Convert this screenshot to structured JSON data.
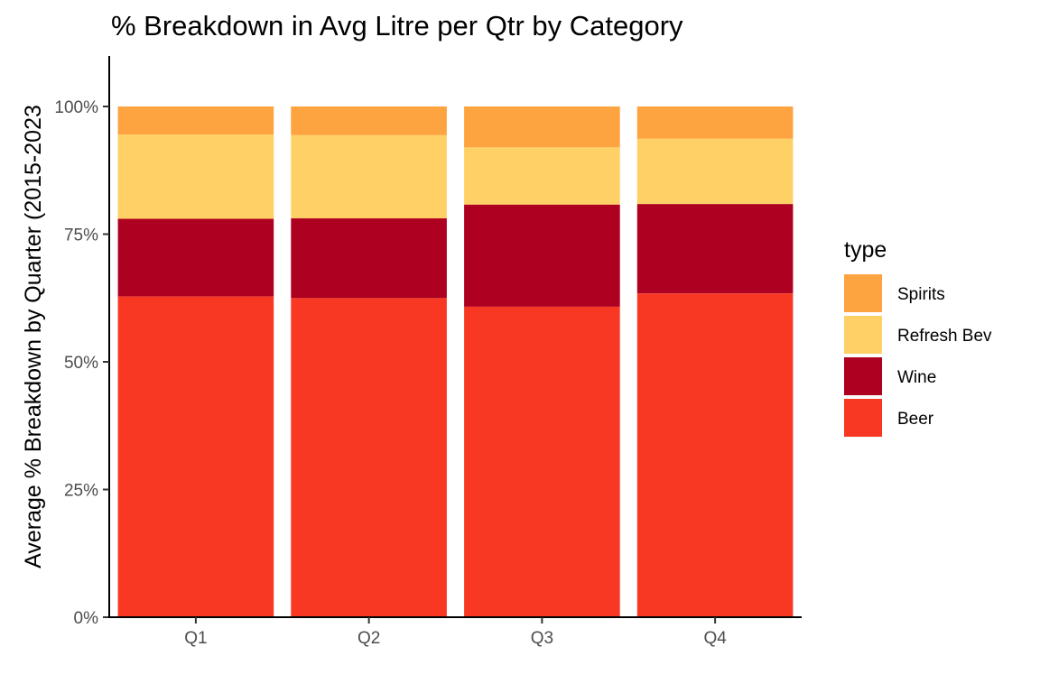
{
  "chart_data": {
    "type": "bar",
    "stacked": true,
    "title": "% Breakdown in Avg Litre per Qtr by Category",
    "xlabel": "",
    "ylabel": "Average % Breakdown by Quarter (2015-2023",
    "categories": [
      "Q1",
      "Q2",
      "Q3",
      "Q4"
    ],
    "y_ticks": [
      "0%",
      "25%",
      "50%",
      "75%",
      "100%"
    ],
    "ylim": [
      0,
      1.1
    ],
    "legend_title": "type",
    "legend_position": "right",
    "grid": false,
    "series": [
      {
        "name": "Beer",
        "color": "#F83823",
        "values": [
          0.628,
          0.625,
          0.608,
          0.634
        ]
      },
      {
        "name": "Wine",
        "color": "#AE0020",
        "values": [
          0.152,
          0.156,
          0.2,
          0.175
        ]
      },
      {
        "name": "Refresh Bev",
        "color": "#FED065",
        "values": [
          0.165,
          0.163,
          0.112,
          0.128
        ]
      },
      {
        "name": "Spirits",
        "color": "#FDA33F",
        "values": [
          0.055,
          0.056,
          0.08,
          0.063
        ]
      }
    ]
  }
}
